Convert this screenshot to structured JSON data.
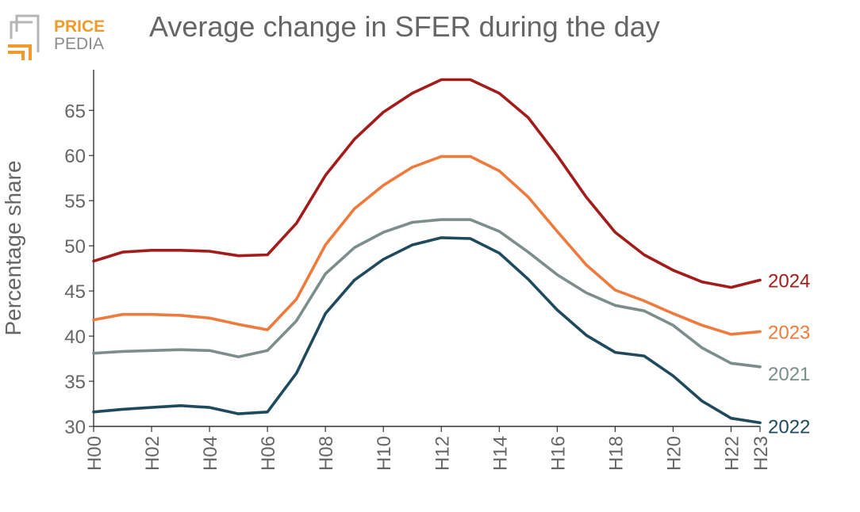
{
  "logo": {
    "line1": "PRICE",
    "line2": "PEDIA",
    "accent_color": "#ef9a2a",
    "gray_color": "#9a9a9a"
  },
  "chart_data": {
    "type": "line",
    "title": "Average change in SFER during the day",
    "xlabel": "",
    "ylabel": "Percentage share",
    "x": [
      "H00",
      "H01",
      "H02",
      "H03",
      "H04",
      "H05",
      "H06",
      "H07",
      "H08",
      "H09",
      "H10",
      "H11",
      "H12",
      "H13",
      "H14",
      "H15",
      "H16",
      "H17",
      "H18",
      "H19",
      "H20",
      "H21",
      "H22",
      "H23"
    ],
    "x_tick_labels": [
      "H00",
      "H02",
      "H04",
      "H06",
      "H08",
      "H10",
      "H12",
      "H14",
      "H16",
      "H18",
      "H20",
      "H22",
      "H23"
    ],
    "y_ticks": [
      30,
      35,
      40,
      45,
      50,
      55,
      60,
      65
    ],
    "ylim": [
      30,
      69.5
    ],
    "grid": false,
    "series": [
      {
        "name": "2024",
        "color": "#a31c1c",
        "values": [
          48.3,
          49.3,
          49.5,
          49.5,
          49.4,
          48.9,
          49.0,
          52.5,
          57.8,
          61.8,
          64.8,
          66.9,
          68.4,
          68.4,
          66.9,
          64.2,
          60.0,
          55.4,
          51.5,
          49.0,
          47.3,
          46.0,
          45.4,
          46.2
        ]
      },
      {
        "name": "2023",
        "color": "#ee7a3c",
        "values": [
          41.8,
          42.4,
          42.4,
          42.3,
          42.0,
          41.3,
          40.7,
          44.1,
          50.1,
          54.1,
          56.7,
          58.7,
          59.9,
          59.9,
          58.3,
          55.4,
          51.6,
          47.9,
          45.1,
          43.9,
          42.5,
          41.2,
          40.2,
          40.5
        ]
      },
      {
        "name": "2021",
        "color": "#7c8e8c",
        "values": [
          38.1,
          38.3,
          38.4,
          38.5,
          38.4,
          37.7,
          38.4,
          41.7,
          46.9,
          49.8,
          51.5,
          52.6,
          52.9,
          52.9,
          51.6,
          49.3,
          46.8,
          44.8,
          43.4,
          42.8,
          41.2,
          38.7,
          37.0,
          36.6
        ]
      },
      {
        "name": "2022",
        "color": "#1f4a5e",
        "values": [
          31.6,
          31.9,
          32.1,
          32.3,
          32.1,
          31.4,
          31.6,
          35.9,
          42.5,
          46.2,
          48.5,
          50.1,
          50.9,
          50.8,
          49.2,
          46.3,
          42.9,
          40.1,
          38.2,
          37.8,
          35.6,
          32.8,
          30.9,
          30.4
        ]
      }
    ]
  }
}
